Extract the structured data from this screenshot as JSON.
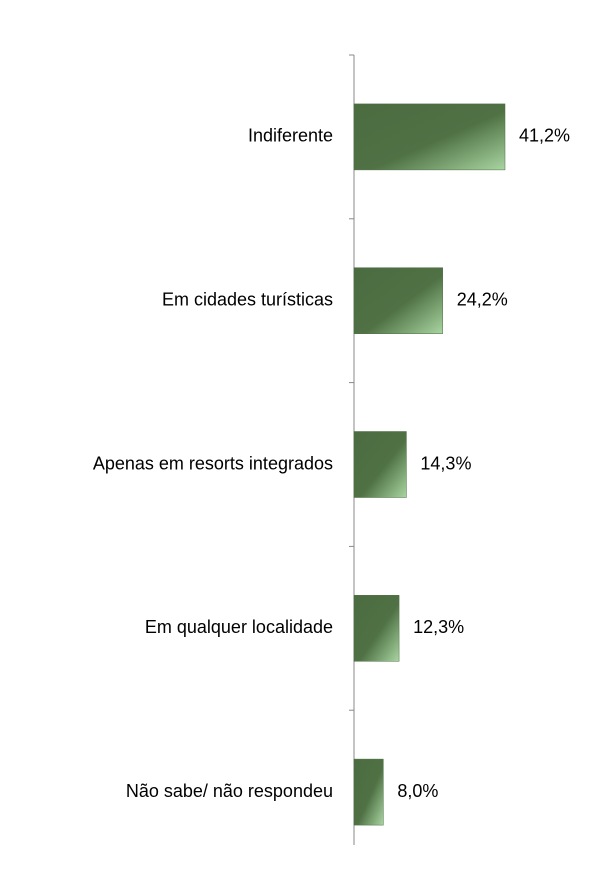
{
  "chart_data": {
    "type": "hbar",
    "categories": [
      "Indiferente",
      "Em cidades turísticas",
      "Apenas em resorts integrados",
      "Em qualquer localidade",
      "Não sabe/ não respondeu"
    ],
    "values": [
      41.2,
      24.2,
      14.3,
      12.3,
      8.0
    ],
    "value_labels": [
      "41,2%",
      "24,2%",
      "14,3%",
      "12,3%",
      "8,0%"
    ],
    "color": "#4b6c40"
  }
}
